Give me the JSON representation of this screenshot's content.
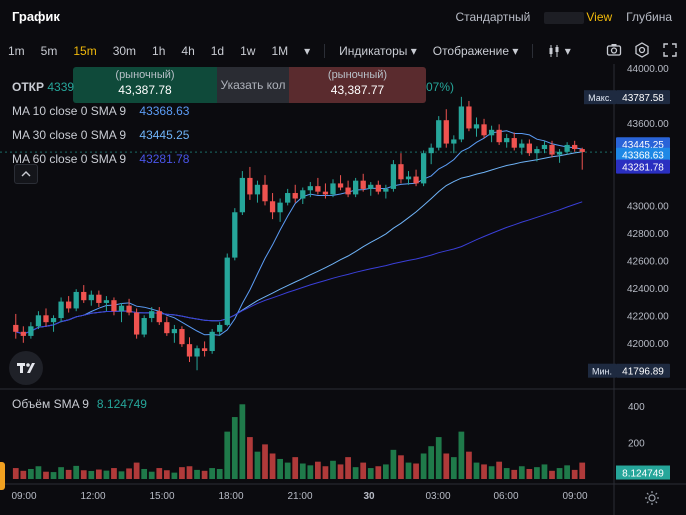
{
  "header": {
    "title": "График",
    "tabs": [
      {
        "label": "Стандартный",
        "active": false
      },
      {
        "label": "View",
        "active": true
      },
      {
        "label": "Глубина",
        "active": false
      }
    ]
  },
  "toolbar": {
    "timeframes": [
      "1m",
      "5m",
      "15m",
      "30m",
      "1h",
      "4h",
      "1d",
      "1w",
      "1M"
    ],
    "active_timeframe": "15m",
    "indicators_label": "Индикаторы",
    "display_label": "Отображение"
  },
  "legend": {
    "open_label": "ОТКР",
    "open_value": "4339",
    "change_suffix": "07%)",
    "ma": [
      {
        "label": "MA 10 close 0 SMA 9",
        "value": "43368.63",
        "color": "#5b9cf5"
      },
      {
        "label": "MA 30 close 0 SMA 9",
        "value": "43445.25",
        "color": "#6fb3f7"
      },
      {
        "label": "MA 60 close 0 SMA 9",
        "value": "43281.78",
        "color": "#3a3fd8"
      }
    ]
  },
  "trade_box": {
    "buy_sub": "(рыночный)",
    "buy_price": "43,387.78",
    "mid_label": "Указать кол",
    "sell_sub": "(рыночный)",
    "sell_price": "43,387.77"
  },
  "volume_legend": {
    "label": "Объём SMA 9",
    "value": "8.124749"
  },
  "price_axis": {
    "ticks": [
      "44000.00",
      "43600.00",
      "43400.00",
      "43000.00",
      "42800.00",
      "42600.00",
      "42400.00",
      "42200.00",
      "42000.00"
    ],
    "max_label": "Макс.",
    "max_value": "43787.58",
    "min_label": "Мин.",
    "min_value": "41796.89",
    "badges": [
      {
        "value": "43445.25",
        "color": "#2a64d8"
      },
      {
        "value": "43368.63",
        "color": "#1e88e5"
      },
      {
        "value": "43281.78",
        "color": "#2a2fc0"
      }
    ]
  },
  "volume_axis": {
    "ticks": [
      "400",
      "200"
    ],
    "badge_value": "8.124749"
  },
  "time_axis": {
    "ticks": [
      "09:00",
      "12:00",
      "15:00",
      "18:00",
      "21:00",
      "30",
      "03:00",
      "06:00",
      "09:00"
    ]
  },
  "colors": {
    "up": "#26a69a",
    "down": "#ef5350",
    "accent": "#f0b90b",
    "background": "#0b0b0f"
  },
  "chart_data": {
    "type": "candlestick",
    "interval": "15m",
    "price_range": [
      41700,
      44000
    ],
    "volume_range": [
      0,
      450
    ],
    "ohlc": [
      [
        42130,
        42210,
        42030,
        42080
      ],
      [
        42080,
        42120,
        42000,
        42050
      ],
      [
        42050,
        42150,
        42030,
        42120
      ],
      [
        42120,
        42230,
        42100,
        42200
      ],
      [
        42200,
        42250,
        42120,
        42150
      ],
      [
        42150,
        42200,
        42080,
        42180
      ],
      [
        42180,
        42330,
        42150,
        42300
      ],
      [
        42300,
        42340,
        42220,
        42250
      ],
      [
        42250,
        42390,
        42230,
        42370
      ],
      [
        42370,
        42420,
        42290,
        42310
      ],
      [
        42310,
        42380,
        42270,
        42350
      ],
      [
        42350,
        42380,
        42260,
        42290
      ],
      [
        42290,
        42340,
        42230,
        42310
      ],
      [
        42310,
        42330,
        42200,
        42230
      ],
      [
        42230,
        42290,
        42150,
        42270
      ],
      [
        42270,
        42320,
        42200,
        42220
      ],
      [
        42220,
        42250,
        42030,
        42060
      ],
      [
        42060,
        42200,
        42040,
        42180
      ],
      [
        42180,
        42260,
        42150,
        42230
      ],
      [
        42230,
        42260,
        42130,
        42150
      ],
      [
        42150,
        42190,
        42050,
        42070
      ],
      [
        42070,
        42130,
        42000,
        42100
      ],
      [
        42100,
        42120,
        41970,
        41990
      ],
      [
        41990,
        42040,
        41860,
        41900
      ],
      [
        41900,
        41980,
        41800,
        41960
      ],
      [
        41960,
        42010,
        41900,
        41940
      ],
      [
        41940,
        42100,
        41920,
        42080
      ],
      [
        42080,
        42150,
        42050,
        42130
      ],
      [
        42130,
        42650,
        42120,
        42620
      ],
      [
        42620,
        42980,
        42600,
        42950
      ],
      [
        42950,
        43250,
        42930,
        43200
      ],
      [
        43200,
        43280,
        43040,
        43080
      ],
      [
        43080,
        43180,
        43020,
        43150
      ],
      [
        43150,
        43220,
        43000,
        43030
      ],
      [
        43030,
        43090,
        42900,
        42950
      ],
      [
        42950,
        43050,
        42880,
        43020
      ],
      [
        43020,
        43120,
        43000,
        43090
      ],
      [
        43090,
        43150,
        43020,
        43050
      ],
      [
        43050,
        43130,
        43010,
        43110
      ],
      [
        43110,
        43170,
        43060,
        43140
      ],
      [
        43140,
        43200,
        43080,
        43100
      ],
      [
        43100,
        43160,
        43050,
        43080
      ],
      [
        43080,
        43190,
        43060,
        43160
      ],
      [
        43160,
        43220,
        43110,
        43130
      ],
      [
        43130,
        43180,
        43060,
        43080
      ],
      [
        43080,
        43200,
        43060,
        43180
      ],
      [
        43180,
        43230,
        43100,
        43120
      ],
      [
        43120,
        43170,
        43070,
        43150
      ],
      [
        43150,
        43180,
        43080,
        43100
      ],
      [
        43100,
        43150,
        43050,
        43120
      ],
      [
        43120,
        43330,
        43100,
        43300
      ],
      [
        43300,
        43380,
        43160,
        43190
      ],
      [
        43190,
        43250,
        43150,
        43210
      ],
      [
        43210,
        43260,
        43140,
        43160
      ],
      [
        43160,
        43400,
        43140,
        43380
      ],
      [
        43380,
        43450,
        43300,
        43420
      ],
      [
        43420,
        43650,
        43400,
        43620
      ],
      [
        43620,
        43700,
        43420,
        43450
      ],
      [
        43450,
        43510,
        43380,
        43480
      ],
      [
        43480,
        43790,
        43460,
        43720
      ],
      [
        43720,
        43760,
        43540,
        43560
      ],
      [
        43560,
        43640,
        43500,
        43590
      ],
      [
        43590,
        43630,
        43490,
        43510
      ],
      [
        43510,
        43580,
        43460,
        43550
      ],
      [
        43550,
        43590,
        43440,
        43460
      ],
      [
        43460,
        43520,
        43420,
        43490
      ],
      [
        43490,
        43530,
        43400,
        43420
      ],
      [
        43420,
        43480,
        43370,
        43450
      ],
      [
        43450,
        43480,
        43360,
        43380
      ],
      [
        43380,
        43430,
        43320,
        43410
      ],
      [
        43410,
        43470,
        43380,
        43440
      ],
      [
        43440,
        43470,
        43350,
        43370
      ],
      [
        43370,
        43410,
        43310,
        43390
      ],
      [
        43390,
        43460,
        43370,
        43440
      ],
      [
        43440,
        43470,
        43390,
        43410
      ],
      [
        43410,
        43420,
        43260,
        43388
      ]
    ],
    "volumes": [
      60,
      45,
      55,
      70,
      40,
      38,
      65,
      50,
      72,
      48,
      44,
      52,
      46,
      60,
      42,
      58,
      90,
      55,
      40,
      60,
      48,
      35,
      65,
      70,
      50,
      45,
      60,
      55,
      260,
      340,
      410,
      230,
      150,
      190,
      140,
      110,
      90,
      120,
      85,
      75,
      95,
      70,
      100,
      80,
      120,
      65,
      90,
      60,
      70,
      80,
      160,
      130,
      90,
      85,
      140,
      180,
      230,
      140,
      120,
      260,
      150,
      90,
      80,
      70,
      95,
      60,
      50,
      70,
      55,
      65,
      80,
      45,
      60,
      75,
      50,
      90
    ]
  }
}
